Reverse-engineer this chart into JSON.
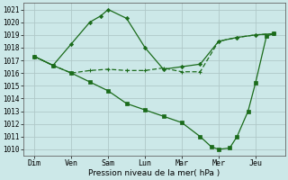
{
  "line_color": "#1a6b1a",
  "background_color": "#cce8e8",
  "grid_color": "#b0c8c8",
  "ylabel": "Pression niveau de la mer( hPa )",
  "ylim": [
    1009.5,
    1021.5
  ],
  "yticks": [
    1010,
    1011,
    1012,
    1013,
    1014,
    1015,
    1016,
    1017,
    1018,
    1019,
    1020,
    1021
  ],
  "x_tick_positions": [
    0,
    1,
    2,
    3,
    4,
    5,
    6
  ],
  "x_tick_labels": [
    "Dim",
    "Ven",
    "Sam",
    "Lun",
    "Mar",
    "Mer",
    "Jeu"
  ],
  "xlim": [
    -0.3,
    6.8
  ],
  "line1_x": [
    0,
    0.5,
    1.0,
    1.5,
    1.8,
    2.0,
    2.5,
    3.0,
    3.5,
    4.0,
    4.5,
    5.0,
    5.5,
    6.0,
    6.5
  ],
  "line1_y": [
    1017.3,
    1016.6,
    1018.3,
    1020.0,
    1020.5,
    1021.0,
    1020.3,
    1018.0,
    1016.3,
    1016.5,
    1016.7,
    1018.5,
    1018.8,
    1019.0,
    1019.1
  ],
  "line2_x": [
    0,
    0.5,
    1.0,
    1.5,
    2.0,
    2.5,
    3.0,
    3.5,
    4.0,
    4.5,
    5.0,
    5.5,
    6.0,
    6.5
  ],
  "line2_y": [
    1017.3,
    1016.6,
    1016.0,
    1016.2,
    1016.3,
    1016.2,
    1016.2,
    1016.4,
    1016.1,
    1016.1,
    1018.5,
    1018.8,
    1019.0,
    1019.1
  ],
  "line3_x": [
    0,
    0.5,
    1.0,
    1.5,
    2.0,
    2.5,
    3.0,
    3.5,
    4.0,
    4.5,
    4.8,
    5.0,
    5.3,
    5.5,
    5.8,
    6.0,
    6.3,
    6.5
  ],
  "line3_y": [
    1017.3,
    1016.6,
    1016.0,
    1015.3,
    1014.6,
    1013.6,
    1013.1,
    1012.6,
    1012.1,
    1011.0,
    1010.2,
    1010.0,
    1010.1,
    1011.0,
    1013.0,
    1015.2,
    1018.9,
    1019.1
  ]
}
